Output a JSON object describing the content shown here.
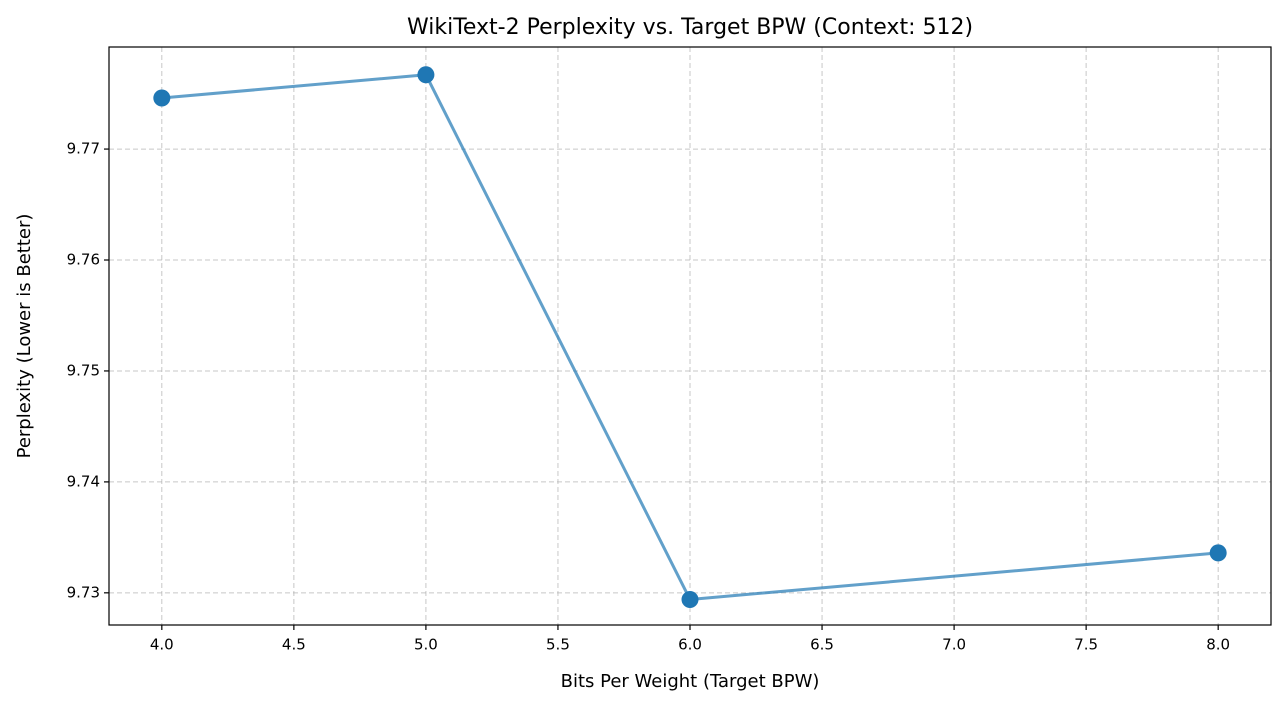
{
  "chart_data": {
    "type": "line",
    "title": "WikiText-2 Perplexity vs. Target BPW (Context: 512)",
    "x_label": "Bits Per Weight (Target BPW)",
    "y_label": "Perplexity (Lower is Better)",
    "x": [
      4,
      5,
      6,
      8
    ],
    "series": [
      {
        "color": "#1f77b4",
        "values": [
          9.7746,
          9.7767,
          9.7294,
          9.7336
        ]
      }
    ],
    "xlim": [
      3.8,
      8.2
    ],
    "ylim": [
      9.7271,
      9.7792
    ],
    "xticks": [
      {
        "value": 4,
        "label": "4.0"
      },
      {
        "value": 4.5,
        "label": "4.5"
      },
      {
        "value": 5,
        "label": "5.0"
      },
      {
        "value": 5.5,
        "label": "5.5"
      },
      {
        "value": 6,
        "label": "6.0"
      },
      {
        "value": 6.5,
        "label": "6.5"
      },
      {
        "value": 7,
        "label": "7.0"
      },
      {
        "value": 7.5,
        "label": "7.5"
      },
      {
        "value": 8,
        "label": "8.0"
      }
    ],
    "yticks": [
      9.73,
      9.74,
      9.75,
      9.76,
      9.77
    ],
    "grid": true
  }
}
